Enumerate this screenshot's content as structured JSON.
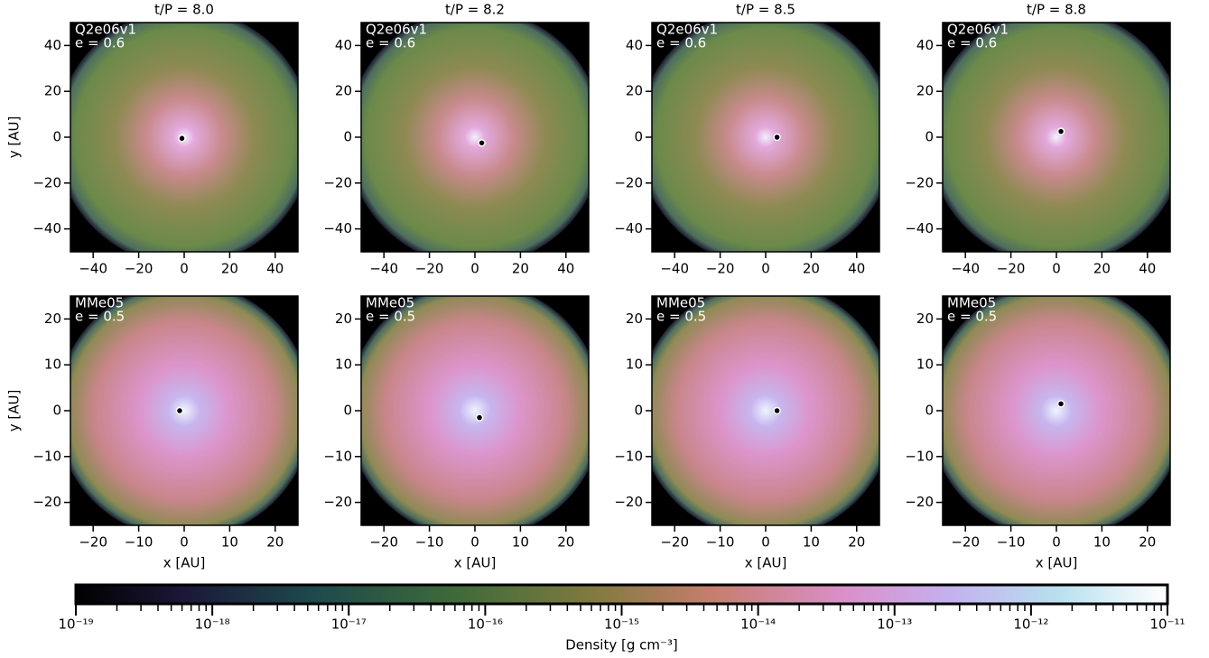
{
  "chart_data": [
    {
      "type": "image",
      "title": "t/P = 8.0",
      "label": "Q2e06v1",
      "sublabel": "e = 0.6",
      "ylabel": "y [AU]",
      "xlim": [
        -50,
        50
      ],
      "ylim": [
        -50,
        50
      ],
      "xticks": [
        {
          "value": -40,
          "label": "−40"
        },
        {
          "value": -20,
          "label": "−20"
        },
        0,
        20,
        40
      ],
      "yticks": [
        {
          "value": -40,
          "label": "−40"
        },
        {
          "value": -20,
          "label": "−20"
        },
        0,
        20,
        40
      ],
      "star": {
        "x": -1,
        "y": -0.5
      }
    },
    {
      "type": "image",
      "title": "t/P = 8.2",
      "label": "Q2e06v1",
      "sublabel": "e = 0.6",
      "xlim": [
        -50,
        50
      ],
      "ylim": [
        -50,
        50
      ],
      "xticks": [
        {
          "value": -40,
          "label": "−40"
        },
        {
          "value": -20,
          "label": "−20"
        },
        0,
        20,
        40
      ],
      "yticks": [
        {
          "value": -40,
          "label": "−40"
        },
        {
          "value": -20,
          "label": "−20"
        },
        0,
        20,
        40
      ],
      "star": {
        "x": 3,
        "y": -2.5
      }
    },
    {
      "type": "image",
      "title": "t/P = 8.5",
      "label": "Q2e06v1",
      "sublabel": "e = 0.6",
      "xlim": [
        -50,
        50
      ],
      "ylim": [
        -50,
        50
      ],
      "xticks": [
        {
          "value": -40,
          "label": "−40"
        },
        {
          "value": -20,
          "label": "−20"
        },
        0,
        20,
        40
      ],
      "yticks": [
        {
          "value": -40,
          "label": "−40"
        },
        {
          "value": -20,
          "label": "−20"
        },
        0,
        20,
        40
      ],
      "star": {
        "x": 5,
        "y": 0
      }
    },
    {
      "type": "image",
      "title": "t/P = 8.8",
      "label": "Q2e06v1",
      "sublabel": "e = 0.6",
      "xlim": [
        -50,
        50
      ],
      "ylim": [
        -50,
        50
      ],
      "xticks": [
        {
          "value": -40,
          "label": "−40"
        },
        {
          "value": -20,
          "label": "−20"
        },
        0,
        20,
        40
      ],
      "yticks": [
        {
          "value": -40,
          "label": "−40"
        },
        {
          "value": -20,
          "label": "−20"
        },
        0,
        20,
        40
      ],
      "star": {
        "x": 2,
        "y": 2.5
      }
    },
    {
      "type": "image",
      "label": "MMe05",
      "sublabel": "e = 0.5",
      "xlabel": "x [AU]",
      "ylabel": "y [AU]",
      "xlim": [
        -25,
        25
      ],
      "ylim": [
        -25,
        25
      ],
      "xticks": [
        {
          "value": -20,
          "label": "−20"
        },
        {
          "value": -10,
          "label": "−10"
        },
        0,
        10,
        20
      ],
      "yticks": [
        {
          "value": -20,
          "label": "−20"
        },
        {
          "value": -10,
          "label": "−10"
        },
        0,
        10,
        20
      ],
      "star": {
        "x": -1,
        "y": 0
      }
    },
    {
      "type": "image",
      "label": "MMe05",
      "sublabel": "e = 0.5",
      "xlabel": "x [AU]",
      "xlim": [
        -25,
        25
      ],
      "ylim": [
        -25,
        25
      ],
      "xticks": [
        {
          "value": -20,
          "label": "−20"
        },
        {
          "value": -10,
          "label": "−10"
        },
        0,
        10,
        20
      ],
      "yticks": [
        {
          "value": -20,
          "label": "−20"
        },
        {
          "value": -10,
          "label": "−10"
        },
        0,
        10,
        20
      ],
      "star": {
        "x": 1,
        "y": -1.5
      }
    },
    {
      "type": "image",
      "label": "MMe05",
      "sublabel": "e = 0.5",
      "xlabel": "x [AU]",
      "xlim": [
        -25,
        25
      ],
      "ylim": [
        -25,
        25
      ],
      "xticks": [
        {
          "value": -20,
          "label": "−20"
        },
        {
          "value": -10,
          "label": "−10"
        },
        0,
        10,
        20
      ],
      "yticks": [
        {
          "value": -20,
          "label": "−20"
        },
        {
          "value": -10,
          "label": "−10"
        },
        0,
        10,
        20
      ],
      "star": {
        "x": 2.5,
        "y": 0
      }
    },
    {
      "type": "image",
      "label": "MMe05",
      "sublabel": "e = 0.5",
      "xlabel": "x [AU]",
      "xlim": [
        -25,
        25
      ],
      "ylim": [
        -25,
        25
      ],
      "xticks": [
        {
          "value": -20,
          "label": "−20"
        },
        {
          "value": -10,
          "label": "−10"
        },
        0,
        10,
        20
      ],
      "yticks": [
        {
          "value": -20,
          "label": "−20"
        },
        {
          "value": -10,
          "label": "−10"
        },
        0,
        10,
        20
      ],
      "star": {
        "x": 1,
        "y": 1.5
      }
    },
    {
      "type": "colorbar",
      "label": "Density [g cm⁻³]",
      "log": true,
      "clim": [
        1e-19,
        1e-11
      ],
      "ticks": [
        {
          "value": 1e-19,
          "label": "10⁻¹⁹"
        },
        {
          "value": 1e-18,
          "label": "10⁻¹⁸"
        },
        {
          "value": 1e-17,
          "label": "10⁻¹⁷"
        },
        {
          "value": 1e-16,
          "label": "10⁻¹⁶"
        },
        {
          "value": 1e-15,
          "label": "10⁻¹⁵"
        },
        {
          "value": 1e-14,
          "label": "10⁻¹⁴"
        },
        {
          "value": 1e-13,
          "label": "10⁻¹³"
        },
        {
          "value": 1e-12,
          "label": "10⁻¹²"
        },
        {
          "value": 1e-11,
          "label": "10⁻¹¹"
        }
      ],
      "minor_ticks": [
        2e-19,
        3e-19,
        4e-19,
        5e-19,
        6e-19,
        7e-19,
        8e-19,
        9e-19,
        2e-18,
        3e-18,
        4e-18,
        5e-18,
        6e-18,
        7e-18,
        8e-18,
        9e-18,
        2e-17,
        3e-17,
        4e-17,
        5e-17,
        6e-17,
        7e-17,
        8e-17,
        9e-17,
        2e-16,
        3e-16,
        4e-16,
        5e-16,
        6e-16,
        7e-16,
        8e-16,
        9e-16,
        2e-15,
        3e-15,
        4e-15,
        5e-15,
        6e-15,
        7e-15,
        8e-15,
        9e-15,
        2e-14,
        3e-14,
        4e-14,
        5e-14,
        6e-14,
        7e-14,
        8e-14,
        9e-14,
        2e-13,
        3e-13,
        4e-13,
        5e-13,
        6e-13,
        7e-13,
        8e-13,
        9e-13,
        2e-12,
        3e-12,
        4e-12,
        5e-12,
        6e-12,
        7e-12,
        8e-12,
        9e-12
      ]
    }
  ]
}
